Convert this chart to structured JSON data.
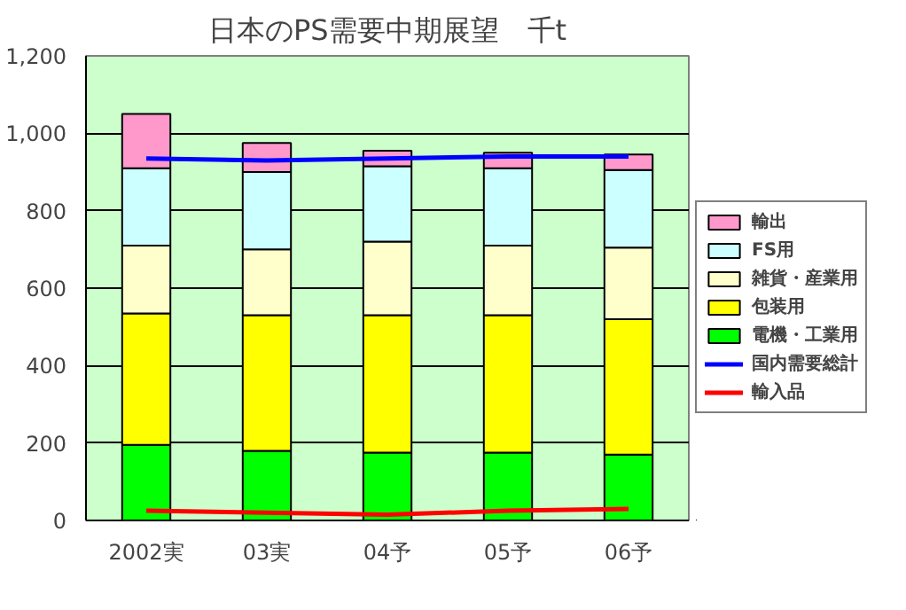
{
  "chart_data": {
    "type": "bar",
    "title": "日本のPS需要中期展望　千t",
    "stacked": true,
    "categories": [
      "2002実",
      "03実",
      "04予",
      "05予",
      "06予"
    ],
    "series": [
      {
        "name": "電機・工業用",
        "color": "#00ff00",
        "values": [
          195,
          180,
          175,
          175,
          170
        ]
      },
      {
        "name": "包装用",
        "color": "#ffff00",
        "values": [
          340,
          350,
          355,
          355,
          350
        ]
      },
      {
        "name": "雑貨・産業用",
        "color": "#ffffcc",
        "values": [
          175,
          170,
          190,
          180,
          185
        ]
      },
      {
        "name": "FS用",
        "color": "#ccffff",
        "values": [
          200,
          200,
          195,
          200,
          200
        ]
      },
      {
        "name": "輸出",
        "color": "#ff99cc",
        "values": [
          140,
          75,
          40,
          40,
          40
        ]
      },
      {
        "name": "国内需要総計",
        "type": "line",
        "color": "#0000ff",
        "values": [
          935,
          930,
          935,
          940,
          940
        ]
      },
      {
        "name": "輸入品",
        "type": "line",
        "color": "#ff0000",
        "values": [
          25,
          20,
          15,
          25,
          30
        ]
      }
    ],
    "ylim": [
      0,
      1200
    ],
    "yticks": [
      0,
      200,
      400,
      600,
      800,
      {
        "value": 1000,
        "label": "1,000"
      },
      {
        "value": 1200,
        "label": "1,200"
      }
    ],
    "grid": "y",
    "legend": "right",
    "marker": "none",
    "line_style": "solid"
  }
}
